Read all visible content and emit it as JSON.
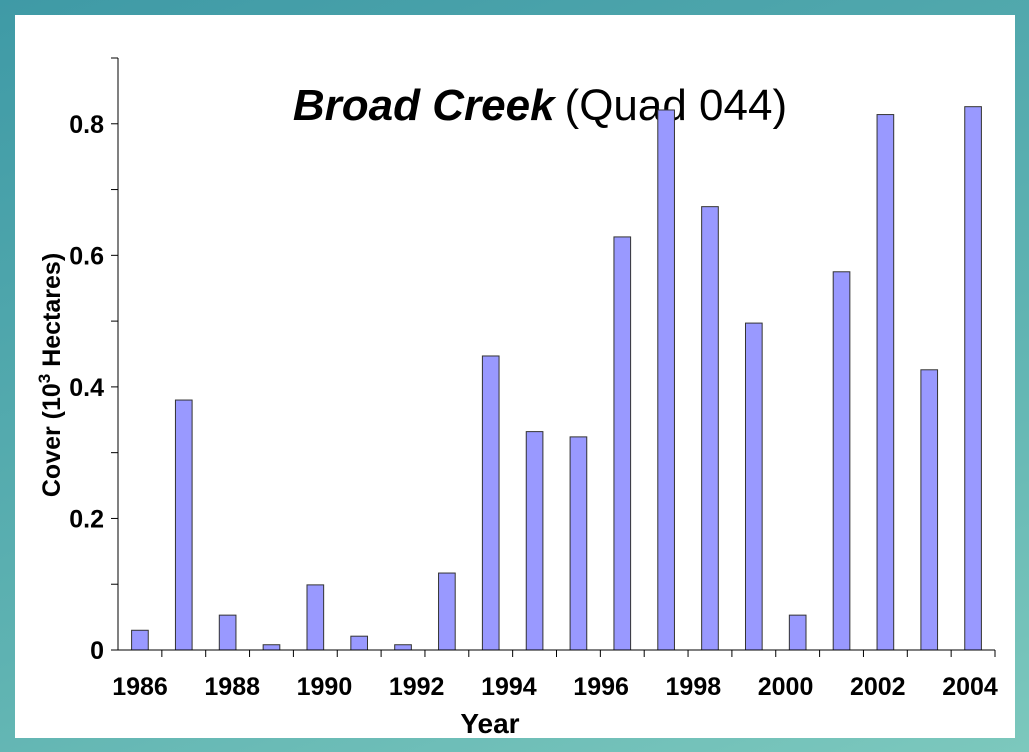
{
  "chart_data": {
    "type": "bar",
    "title": "Broad Creek",
    "subtitle": "(Quad 044)",
    "ylabel": "Cover (10",
    "ylabel_sup": "3",
    "ylabel_end": " Hectares)",
    "xlabel": "Year",
    "categories": [
      "1986",
      null,
      "1988",
      null,
      "1990",
      null,
      "1992",
      null,
      "1994",
      null,
      "1996",
      null,
      "1998",
      null,
      "2000",
      null,
      "2002",
      null,
      "2004",
      null
    ],
    "values": [
      0.03,
      0.38,
      0.053,
      0.008,
      0.099,
      0.021,
      0.008,
      0.117,
      0.447,
      0.332,
      0.324,
      0.628,
      0.821,
      0.674,
      0.497,
      0.053,
      0.575,
      0.814,
      0.426,
      0.826
    ],
    "color": "#9999ff",
    "ylim": [
      0,
      0.9
    ],
    "yticks": [
      0,
      0.2,
      0.4,
      0.6,
      0.8
    ],
    "yminorticks": [
      0.1,
      0.3,
      0.5,
      0.7,
      0.9
    ],
    "grid": false
  }
}
